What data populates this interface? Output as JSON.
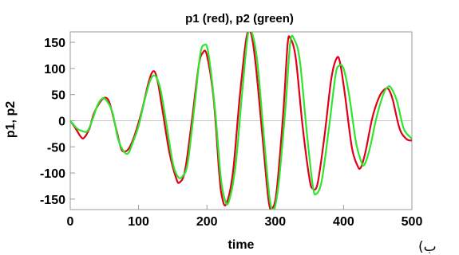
{
  "side_mark": "(ب",
  "colors": {
    "p1": "#e0001b",
    "p2": "#2ee62e",
    "frame": "#9a9a9a",
    "zero_line": "#c8c8c8"
  },
  "chart_data": {
    "type": "line",
    "title": "p1 (red), p2 (green)",
    "xlabel": "time",
    "ylabel": "p1, p2",
    "xlim": [
      0,
      500
    ],
    "ylim": [
      -170,
      170
    ],
    "xticks": [
      0,
      100,
      200,
      300,
      400,
      500
    ],
    "yticks": [
      -150,
      -100,
      -50,
      0,
      50,
      100,
      150
    ],
    "grid": false,
    "zero_line": true,
    "series": [
      {
        "color": "#e0001b",
        "x": [
          0,
          8,
          15,
          20,
          28,
          35,
          45,
          52,
          58,
          68,
          75,
          82,
          88,
          95,
          105,
          115,
          122,
          128,
          135,
          145,
          155,
          160,
          168,
          178,
          188,
          194,
          200,
          210,
          218,
          222,
          228,
          238,
          248,
          258,
          265,
          272,
          282,
          290,
          295,
          302,
          312,
          318,
          322,
          330,
          340,
          350,
          355,
          362,
          372,
          382,
          390,
          395,
          402,
          412,
          420,
          425,
          432,
          442,
          452,
          460,
          466,
          472,
          482,
          492,
          500
        ],
        "y": [
          0,
          -15,
          -30,
          -33,
          -15,
          15,
          38,
          44,
          32,
          -20,
          -55,
          -58,
          -48,
          -25,
          20,
          75,
          95,
          75,
          20,
          -60,
          -110,
          -118,
          -95,
          0,
          105,
          130,
          125,
          40,
          -100,
          -145,
          -160,
          -100,
          45,
          160,
          165,
          100,
          -40,
          -150,
          -168,
          -135,
          20,
          145,
          158,
          120,
          -10,
          -110,
          -130,
          -120,
          -30,
          80,
          120,
          110,
          50,
          -50,
          -85,
          -90,
          -60,
          5,
          45,
          60,
          60,
          40,
          -15,
          -35,
          -38
        ]
      },
      {
        "color": "#2ee62e",
        "x": [
          0,
          10,
          18,
          25,
          32,
          40,
          48,
          55,
          62,
          70,
          78,
          85,
          92,
          100,
          110,
          118,
          125,
          132,
          140,
          150,
          158,
          165,
          172,
          182,
          190,
          196,
          202,
          212,
          220,
          226,
          232,
          242,
          252,
          260,
          266,
          274,
          284,
          292,
          298,
          305,
          315,
          322,
          328,
          336,
          346,
          355,
          360,
          368,
          378,
          388,
          393,
          400,
          408,
          418,
          425,
          430,
          438,
          448,
          458,
          465,
          470,
          478,
          488,
          498,
          500
        ],
        "y": [
          0,
          -15,
          -20,
          -20,
          0,
          30,
          43,
          35,
          15,
          -35,
          -58,
          -62,
          -40,
          -10,
          45,
          80,
          85,
          60,
          0,
          -80,
          -108,
          -105,
          -80,
          30,
          125,
          145,
          130,
          20,
          -105,
          -150,
          -155,
          -85,
          60,
          165,
          168,
          110,
          -40,
          -150,
          -170,
          -120,
          25,
          150,
          155,
          115,
          -20,
          -125,
          -140,
          -115,
          -20,
          85,
          105,
          100,
          50,
          -40,
          -75,
          -85,
          -55,
          5,
          50,
          65,
          62,
          38,
          -15,
          -32,
          -35
        ]
      }
    ]
  }
}
